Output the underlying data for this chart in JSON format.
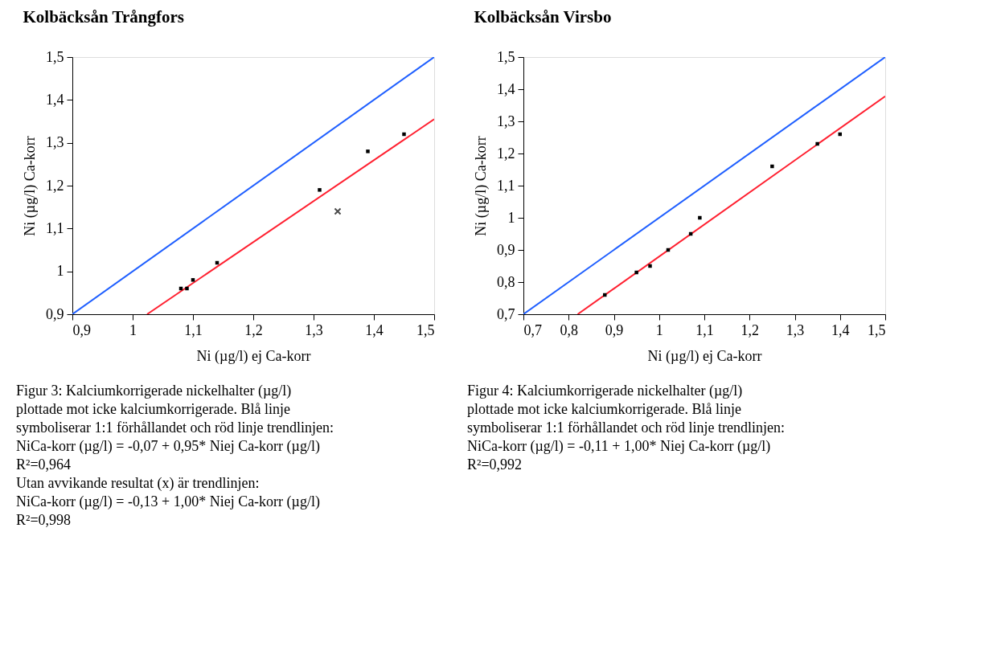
{
  "chart_data": [
    {
      "type": "scatter",
      "title": "Kolbäcksån Trångfors",
      "xlabel": "Ni (µg/l) ej Ca-korr",
      "ylabel": "Ni (µg/l) Ca-korr",
      "xlim": [
        0.9,
        1.5
      ],
      "ylim": [
        0.9,
        1.5
      ],
      "xticks": [
        {
          "value": 0.9,
          "label": "0,9"
        },
        1,
        {
          "value": 1.1,
          "label": "1,1"
        },
        {
          "value": 1.2,
          "label": "1,2"
        },
        {
          "value": 1.3,
          "label": "1,3"
        },
        {
          "value": 1.4,
          "label": "1,4"
        },
        {
          "value": 1.5,
          "label": "1,5"
        }
      ],
      "yticks": [
        {
          "value": 0.9,
          "label": "0,9"
        },
        1,
        {
          "value": 1.1,
          "label": "1,1"
        },
        {
          "value": 1.2,
          "label": "1,2"
        },
        {
          "value": 1.3,
          "label": "1,3"
        },
        {
          "value": 1.4,
          "label": "1,4"
        },
        {
          "value": 1.5,
          "label": "1,5"
        }
      ],
      "grid": false,
      "series": [
        {
          "type": "line",
          "color": "#1f5fff",
          "x": [
            0.9,
            1.5
          ],
          "values": [
            0.9,
            1.5
          ]
        },
        {
          "type": "line",
          "color": "#ff2030",
          "x": [
            1.024,
            1.5
          ],
          "values": [
            0.9,
            1.355
          ]
        },
        {
          "type": "scatter",
          "marker": "square",
          "color": "#000000",
          "x": [
            1.08,
            1.09,
            1.1,
            1.14,
            1.31,
            1.39,
            1.45
          ],
          "values": [
            0.96,
            0.96,
            0.98,
            1.02,
            1.19,
            1.28,
            1.32
          ]
        },
        {
          "type": "scatter",
          "marker": "cross",
          "color": "#000000",
          "x": [
            1.34
          ],
          "values": [
            1.14
          ]
        }
      ],
      "annotations": [
        "Figur 3: Kalciumkorrigerade nickelhalter (µg/l)",
        "plottade mot icke kalciumkorrigerade. Blå linje",
        "symboliserar 1:1 förhållandet och röd linje trendlinjen:",
        "NiCa-korr (µg/l)  = -0,07 + 0,95* Niej Ca-korr (µg/l)",
        "R²=0,964",
        "Utan avvikande resultat (x) är trendlinjen:",
        "NiCa-korr (µg/l)  = -0,13 + 1,00* Niej Ca-korr (µg/l)",
        "R²=0,998"
      ]
    },
    {
      "type": "scatter",
      "title": "Kolbäcksån Virsbo",
      "xlabel": "Ni (µg/l) ej Ca-korr",
      "ylabel": "Ni (µg/l) Ca-korr",
      "xlim": [
        0.7,
        1.5
      ],
      "ylim": [
        0.7,
        1.5
      ],
      "xticks": [
        {
          "value": 0.7,
          "label": "0,7"
        },
        {
          "value": 0.8,
          "label": "0,8"
        },
        {
          "value": 0.9,
          "label": "0,9"
        },
        1,
        {
          "value": 1.1,
          "label": "1,1"
        },
        {
          "value": 1.2,
          "label": "1,2"
        },
        {
          "value": 1.3,
          "label": "1,3"
        },
        {
          "value": 1.4,
          "label": "1,4"
        },
        {
          "value": 1.5,
          "label": "1,5"
        }
      ],
      "yticks": [
        {
          "value": 0.7,
          "label": "0,7"
        },
        {
          "value": 0.8,
          "label": "0,8"
        },
        {
          "value": 0.9,
          "label": "0,9"
        },
        1,
        {
          "value": 1.1,
          "label": "1,1"
        },
        {
          "value": 1.2,
          "label": "1,2"
        },
        {
          "value": 1.3,
          "label": "1,3"
        },
        {
          "value": 1.4,
          "label": "1,4"
        },
        {
          "value": 1.5,
          "label": "1,5"
        }
      ],
      "grid": false,
      "series": [
        {
          "type": "line",
          "color": "#1f5fff",
          "x": [
            0.7,
            1.5
          ],
          "values": [
            0.7,
            1.5
          ]
        },
        {
          "type": "line",
          "color": "#ff2030",
          "x": [
            0.82,
            1.5
          ],
          "values": [
            0.7,
            1.378
          ]
        },
        {
          "type": "scatter",
          "marker": "square",
          "color": "#000000",
          "x": [
            0.88,
            0.95,
            0.98,
            1.02,
            1.07,
            1.09,
            1.25,
            1.35,
            1.4
          ],
          "values": [
            0.76,
            0.83,
            0.85,
            0.9,
            0.95,
            1.0,
            1.16,
            1.23,
            1.26
          ]
        }
      ],
      "annotations": [
        "Figur 4: Kalciumkorrigerade nickelhalter (µg/l)",
        "plottade mot icke kalciumkorrigerade. Blå linje",
        "symboliserar 1:1 förhållandet och röd linje trendlinjen:",
        "NiCa-korr (µg/l)  = -0,11 + 1,00* Niej Ca-korr (µg/l)",
        "R²=0,992"
      ]
    }
  ]
}
